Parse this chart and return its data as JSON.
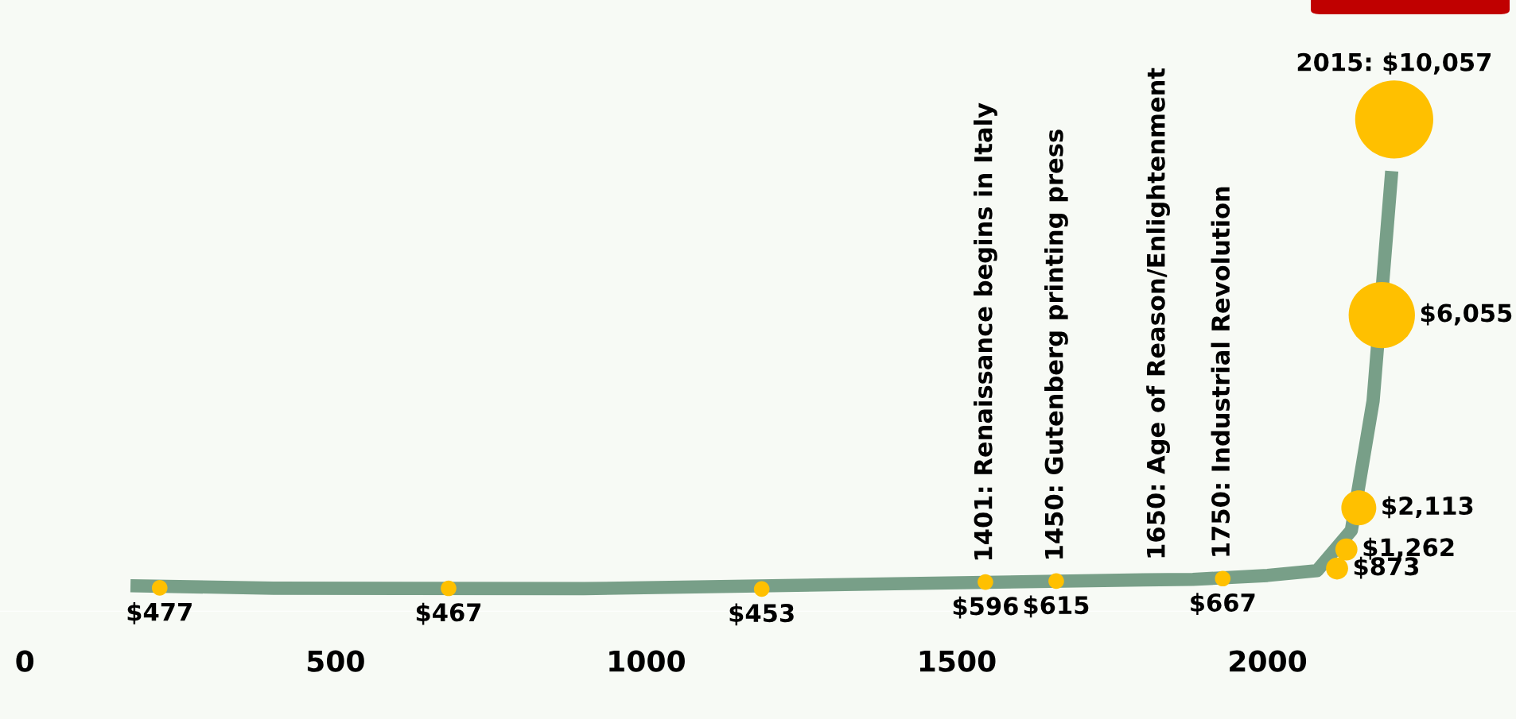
{
  "chart_data": {
    "type": "bubble",
    "x": [
      217,
      682,
      1186,
      1546,
      1660,
      1928,
      2112,
      2127,
      2147,
      2184,
      2204
    ],
    "xlim": [
      -40,
      2400
    ],
    "xticks": [
      0,
      500,
      1000,
      1500,
      2000
    ],
    "ylim": [
      0,
      12500
    ],
    "tick_labels": "x",
    "grid": false,
    "series": [
      {
        "type": "line",
        "color": "#789f88",
        "x": [
          170,
          400,
          900,
          1400,
          1800,
          1880,
          2000,
          2080,
          2135,
          2170,
          2200
        ],
        "values": [
          520,
          470,
          460,
          560,
          640,
          650,
          730,
          830,
          1650,
          4300,
          9000
        ]
      },
      {
        "color": "#ffc000",
        "values": [
          477,
          467,
          453,
          596,
          615,
          667,
          873,
          1262,
          2113,
          6055,
          10057
        ],
        "sizes": [
          0.04,
          0.04,
          0.04,
          0.04,
          0.04,
          0.04,
          0.08,
          0.08,
          0.2,
          0.72,
          1
        ],
        "value_labels": [
          "$477",
          "$467",
          "$453",
          "$596",
          "$615",
          "$667",
          "$873",
          "$1,262",
          "$2,113",
          "$6,055",
          "2015: $10,057"
        ]
      }
    ],
    "annotations": [
      {
        "text": "1401: Renaissance begins in Italy",
        "x": 1546,
        "y": 596
      },
      {
        "text": "1450: Gutenberg printing press",
        "x": 1660,
        "y": 615
      },
      {
        "text": "1650: Age of Reason/Enlightenment",
        "x": 1824,
        "y": 640
      },
      {
        "text": "1750: Industrial Revolution",
        "x": 1928,
        "y": 667
      }
    ]
  }
}
